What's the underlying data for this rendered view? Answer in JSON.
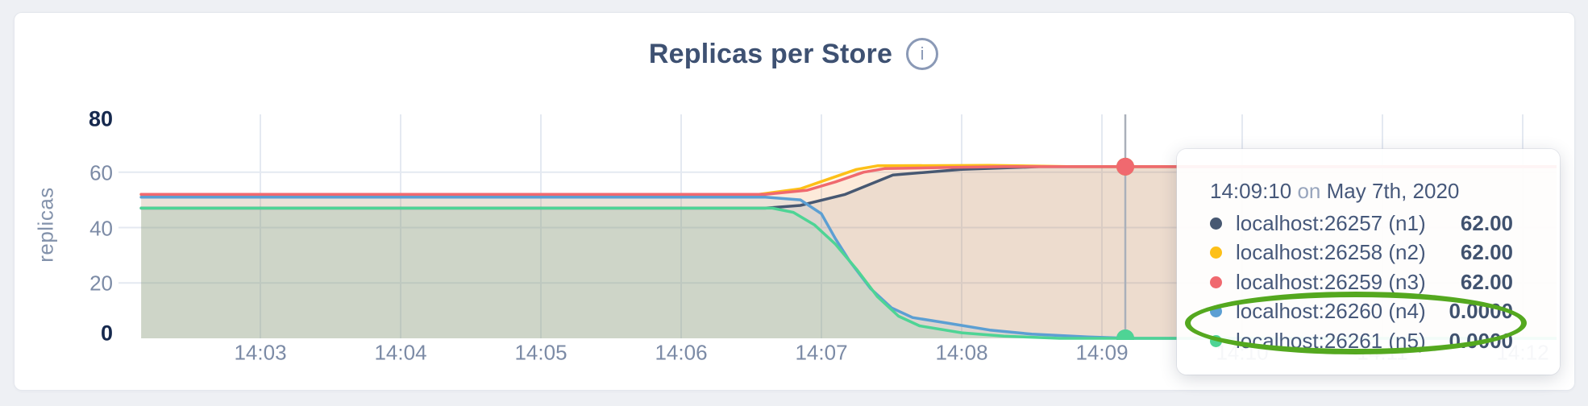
{
  "card": {
    "title": "Replicas per Store",
    "info_icon_glyph": "i"
  },
  "chart_data": {
    "type": "area",
    "title": "Replicas per Store",
    "xlabel": "",
    "ylabel": "replicas",
    "ylim": [
      0,
      80
    ],
    "y_ticks": [
      0,
      20,
      40,
      60,
      80
    ],
    "y_gridlines": [
      20,
      40,
      60
    ],
    "grid": true,
    "x_ticks": [
      {
        "minute": 3,
        "label": "14:03"
      },
      {
        "minute": 4,
        "label": "14:04"
      },
      {
        "minute": 5,
        "label": "14:05"
      },
      {
        "minute": 6,
        "label": "14:06"
      },
      {
        "minute": 7,
        "label": "14:07"
      },
      {
        "minute": 8,
        "label": "14:08"
      },
      {
        "minute": 9,
        "label": "14:09"
      },
      {
        "minute": 10,
        "label": "14:10"
      },
      {
        "minute": 11,
        "label": "14:11"
      },
      {
        "minute": 12,
        "label": "14:12"
      }
    ],
    "series": [
      {
        "name": "localhost:26257 (n1)",
        "id": "n1",
        "color": "#475872",
        "hover_value_label": "62.00",
        "hover_value": 62,
        "points": [
          [
            2.15,
            47
          ],
          [
            6.6,
            47
          ],
          [
            6.85,
            48
          ],
          [
            7.17,
            52
          ],
          [
            7.51,
            59
          ],
          [
            8.0,
            61
          ],
          [
            8.55,
            62
          ],
          [
            12.24,
            62
          ]
        ]
      },
      {
        "name": "localhost:26258 (n2)",
        "id": "n2",
        "color": "#fdc018",
        "hover_value_label": "62.00",
        "hover_value": 62,
        "points": [
          [
            2.15,
            52
          ],
          [
            6.55,
            52
          ],
          [
            6.85,
            54
          ],
          [
            7.05,
            57.5
          ],
          [
            7.25,
            61
          ],
          [
            7.4,
            62.3
          ],
          [
            8.2,
            62.5
          ],
          [
            8.8,
            62
          ],
          [
            12.24,
            62
          ]
        ]
      },
      {
        "name": "localhost:26259 (n3)",
        "id": "n3",
        "color": "#f0696f",
        "hover_value_label": "62.00",
        "hover_value": 62,
        "points": [
          [
            2.15,
            52
          ],
          [
            6.6,
            52
          ],
          [
            6.9,
            53.5
          ],
          [
            7.1,
            56.5
          ],
          [
            7.3,
            60
          ],
          [
            7.45,
            61.3
          ],
          [
            7.9,
            61.7
          ],
          [
            8.3,
            62
          ],
          [
            12.24,
            62
          ]
        ]
      },
      {
        "name": "localhost:26260 (n4)",
        "id": "n4",
        "color": "#5c9fd3",
        "hover_value_label": "0.0000",
        "hover_value": 0,
        "points": [
          [
            2.15,
            51
          ],
          [
            6.6,
            51
          ],
          [
            6.85,
            50
          ],
          [
            7.0,
            45
          ],
          [
            7.1,
            36
          ],
          [
            7.2,
            28
          ],
          [
            7.35,
            18
          ],
          [
            7.5,
            11
          ],
          [
            7.65,
            7.5
          ],
          [
            7.9,
            5.5
          ],
          [
            8.2,
            3
          ],
          [
            8.5,
            1.5
          ],
          [
            8.9,
            0.5
          ],
          [
            9.2,
            0
          ],
          [
            12.24,
            0
          ]
        ]
      },
      {
        "name": "localhost:26261 (n5)",
        "id": "n5",
        "color": "#4ed495",
        "hover_value_label": "0.0000",
        "hover_value": 0,
        "points": [
          [
            2.15,
            47
          ],
          [
            6.65,
            47
          ],
          [
            6.8,
            45.5
          ],
          [
            6.95,
            41
          ],
          [
            7.1,
            34
          ],
          [
            7.25,
            25
          ],
          [
            7.4,
            15
          ],
          [
            7.55,
            8
          ],
          [
            7.7,
            4.5
          ],
          [
            8.0,
            2
          ],
          [
            8.3,
            0.8
          ],
          [
            8.7,
            0
          ],
          [
            12.24,
            0
          ]
        ]
      }
    ],
    "hover": {
      "minute": 9.1667,
      "time_label": "14:09:10",
      "on_word": "on",
      "date_label": "May 7th, 2020"
    },
    "annotation": {
      "shape": "ellipse",
      "color": "#54a81f",
      "highlights": [
        "localhost:26260 (n4)",
        "localhost:26261 (n5)"
      ]
    },
    "legend_position": "tooltip",
    "area_fill_opacity": 0.1
  }
}
